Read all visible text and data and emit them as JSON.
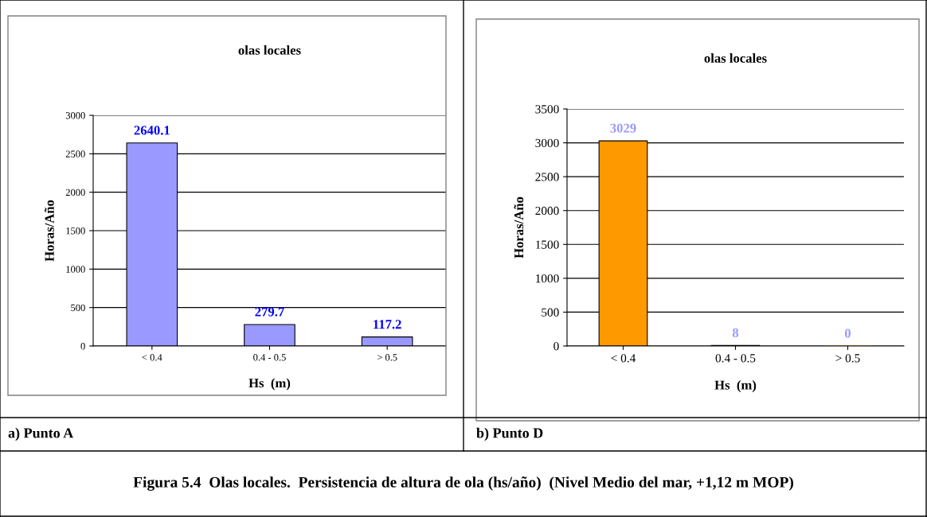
{
  "chart_data": [
    {
      "type": "bar",
      "title": "olas locales",
      "xlabel": "Hs  (m)",
      "ylabel": "Horas/Año",
      "categories": [
        "< 0.4",
        "0.4 - 0.5",
        "> 0.5"
      ],
      "values": [
        2640.1,
        279.7,
        117.2
      ],
      "color": "#9999ff",
      "ylim": [
        0,
        3000
      ],
      "yticks": [
        0,
        500,
        1000,
        1500,
        2000,
        2500,
        3000
      ],
      "grid": "y",
      "data_labels": true,
      "annotations": [
        "a) Punto A",
        "Figura 5.4  Olas locales.  Persistencia de altura de ola (hs/año)  (Nivel Medio del mar, +1,12 m MOP)"
      ]
    },
    {
      "type": "bar",
      "title": "olas locales",
      "xlabel": "Hs  (m)",
      "ylabel": "Horas/Año",
      "categories": [
        "< 0.4",
        "0.4 - 0.5",
        "> 0.5"
      ],
      "values": [
        3029,
        8,
        0
      ],
      "colors": [
        "#ff9900",
        "#ff9900",
        "#ff9900"
      ],
      "ylim": [
        0,
        3500
      ],
      "yticks": [
        0,
        500,
        1000,
        1500,
        2000,
        2500,
        3000,
        3500
      ],
      "grid": "y",
      "data_labels": true,
      "annotations": [
        "b) Punto D"
      ]
    }
  ]
}
